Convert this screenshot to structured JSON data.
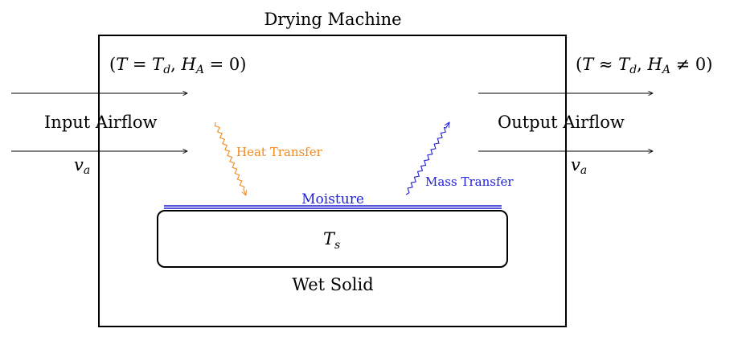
{
  "title": "Drying Machine",
  "input_condition": {
    "open": "(",
    "T": "T",
    "eq": " = ",
    "Td": "T",
    "Td_sub": "d",
    "sep": ", ",
    "HA": "H",
    "HA_sub": "A",
    "val": " = 0",
    "close": ")"
  },
  "output_condition": {
    "open": "(",
    "T": "T",
    "approx": " ≈ ",
    "Td": "T",
    "Td_sub": "d",
    "sep": ", ",
    "HA": "H",
    "HA_sub": "A",
    "neq": " ≠ 0",
    "close": ")"
  },
  "input_label": "Input Airflow",
  "output_label": "Output Airflow",
  "input_velocity": {
    "v": "v",
    "sub": "a"
  },
  "output_velocity": {
    "v": "v",
    "sub": "a"
  },
  "heat_transfer": "Heat Transfer",
  "mass_transfer": "Mass Transfer",
  "moisture": "Moisture",
  "solid_temp": {
    "T": "T",
    "sub": "s"
  },
  "solid_label": "Wet Solid",
  "colors": {
    "heat": "#f28a1e",
    "mass": "#1f1fd6",
    "moisture": "#1f1fd6",
    "line": "#000000"
  }
}
